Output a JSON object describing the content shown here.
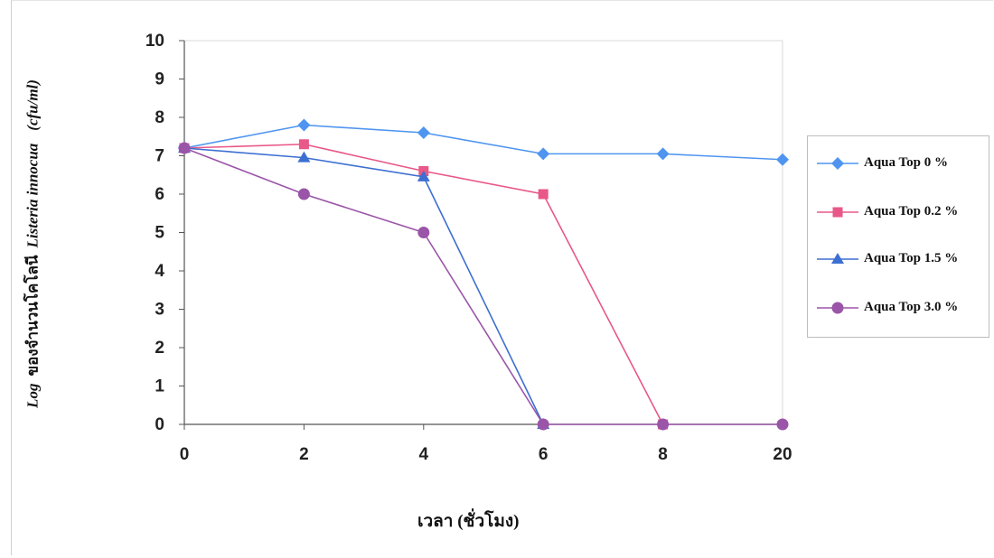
{
  "chart_data": {
    "type": "line",
    "categories": [
      "0",
      "2",
      "4",
      "6",
      "8",
      "20"
    ],
    "ylim": [
      0,
      10
    ],
    "yticks": [
      0,
      1,
      2,
      3,
      4,
      5,
      6,
      7,
      8,
      9,
      10
    ],
    "ylabel_prefix": "Log",
    "ylabel_thai": "ของจำนวนโคโลนี",
    "ylabel_species": "Listeria innocua",
    "ylabel_unit": "(cfu/ml)",
    "xlabel": "เวลา (ชั่วโมง)",
    "legend_position": "right",
    "series": [
      {
        "name": "Aqua Top 0 %",
        "color": "#4f95f0",
        "marker": "diamond",
        "values": [
          7.2,
          7.8,
          7.6,
          7.05,
          7.05,
          6.9
        ]
      },
      {
        "name": "Aqua Top 0.2 %",
        "color": "#e85888",
        "marker": "square",
        "values": [
          7.2,
          7.3,
          6.6,
          6.0,
          0.0,
          null
        ]
      },
      {
        "name": "Aqua Top 1.5 %",
        "color": "#3d6fd1",
        "marker": "triangle",
        "values": [
          7.2,
          6.95,
          6.45,
          0.0,
          null,
          null
        ]
      },
      {
        "name": "Aqua Top 3.0 %",
        "color": "#9a55a8",
        "marker": "circle",
        "values": [
          7.2,
          6.0,
          5.0,
          0.0,
          0.0,
          0.0
        ]
      }
    ]
  }
}
